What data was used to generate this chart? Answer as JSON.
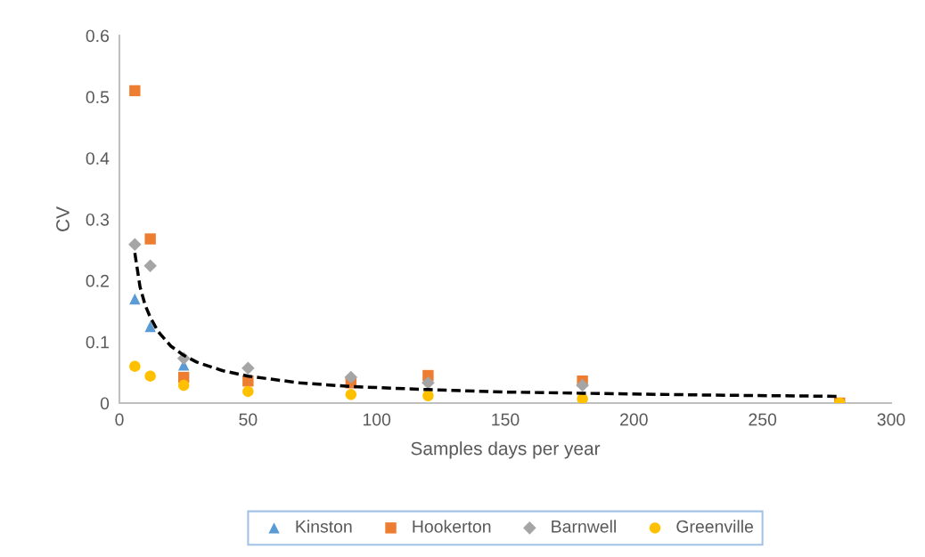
{
  "chart_data": {
    "type": "scatter",
    "xlabel": "Samples days per year",
    "ylabel": "CV",
    "xlim": [
      0,
      300
    ],
    "xticks": [
      0,
      50,
      100,
      150,
      200,
      250,
      300
    ],
    "ylim": [
      0,
      0.6
    ],
    "yticks": [
      0,
      0.1,
      0.2,
      0.3,
      0.4,
      0.5,
      0.6
    ],
    "grid": false,
    "legend": "bottom",
    "x": [
      6,
      12,
      25,
      50,
      90,
      120,
      180,
      280
    ],
    "series": [
      {
        "name": "Kinston",
        "color": "#5b9bd5",
        "marker": "triangle",
        "values": [
          0.17,
          0.125,
          0.062,
          null,
          null,
          null,
          null,
          null
        ]
      },
      {
        "name": "Hookerton",
        "color": "#ed7d31",
        "marker": "square",
        "values": [
          0.51,
          0.268,
          0.042,
          0.036,
          0.033,
          0.045,
          0.036,
          0
        ]
      },
      {
        "name": "Barnwell",
        "color": "#a5a5a5",
        "marker": "diamond",
        "values": [
          0.259,
          0.224,
          0.073,
          0.057,
          0.042,
          0.033,
          0.029,
          null
        ]
      },
      {
        "name": "Greenville",
        "color": "#ffc000",
        "marker": "circle",
        "values": [
          0.06,
          0.044,
          0.029,
          0.019,
          0.014,
          0.012,
          0.007,
          0
        ]
      },
      {
        "type": "line",
        "color": "#000000",
        "line_style": "dashed",
        "marker": "none",
        "x": [
          6,
          8,
          10,
          12,
          15,
          20,
          25,
          30,
          40,
          50,
          70,
          90,
          120,
          150,
          180,
          230,
          280
        ],
        "values": [
          0.245,
          0.19,
          0.16,
          0.14,
          0.117,
          0.093,
          0.078,
          0.067,
          0.053,
          0.044,
          0.033,
          0.027,
          0.022,
          0.018,
          0.016,
          0.013,
          0.011
        ]
      }
    ]
  }
}
